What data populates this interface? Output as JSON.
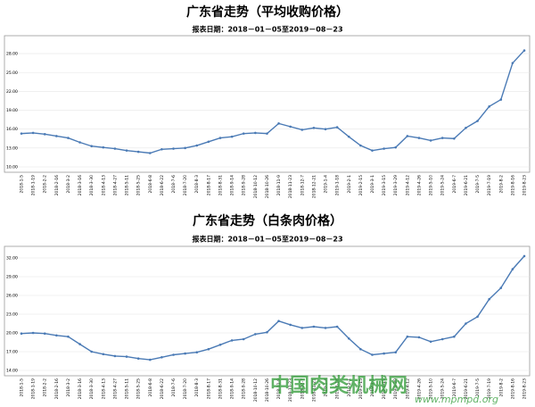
{
  "chart_data": [
    {
      "type": "line",
      "title": "广东省走势（平均收购价格）",
      "subtitle": "报表日期：2018－01－05至2019－08－23",
      "categories": [
        "2018-1-5",
        "2018-1-19",
        "2018-2-2",
        "2018-2-16",
        "2018-3-2",
        "2018-3-16",
        "2018-3-30",
        "2018-4-13",
        "2018-4-27",
        "2018-5-11",
        "2018-5-25",
        "2018-6-8",
        "2018-6-22",
        "2018-7-6",
        "2018-7-20",
        "2018-8-3",
        "2018-8-17",
        "2018-8-31",
        "2018-9-14",
        "2018-9-28",
        "2018-10-12",
        "2018-10-26",
        "2018-11-9",
        "2018-11-23",
        "2018-12-7",
        "2018-12-21",
        "2019-1-4",
        "2019-1-18",
        "2019-2-1",
        "2019-2-15",
        "2019-3-1",
        "2019-3-15",
        "2019-3-29",
        "2019-4-12",
        "2019-4-26",
        "2019-5-10",
        "2019-5-24",
        "2019-6-7",
        "2019-6-21",
        "2019-7-5",
        "2019-7-19",
        "2019-8-2",
        "2019-8-16",
        "2019-8-23"
      ],
      "series": [
        {
          "name": "平均收购价格",
          "color": "#4a7ab5",
          "values": [
            15.3,
            15.4,
            15.2,
            14.9,
            14.6,
            13.9,
            13.3,
            13.1,
            12.9,
            12.6,
            12.4,
            12.2,
            12.8,
            12.9,
            13.0,
            13.4,
            14.0,
            14.6,
            14.8,
            15.3,
            15.4,
            15.3,
            16.9,
            16.4,
            15.9,
            16.2,
            16.0,
            16.3,
            14.8,
            13.4,
            12.6,
            12.9,
            13.1,
            14.9,
            14.6,
            14.2,
            14.6,
            14.5,
            16.2,
            17.3,
            19.6,
            20.7,
            26.5,
            28.5
          ]
        }
      ],
      "ylim": [
        10,
        30
      ],
      "yticks": [
        {
          "value": 10,
          "label": "10.00"
        },
        {
          "value": 13,
          "label": "13.00"
        },
        {
          "value": 16,
          "label": "16.00"
        },
        {
          "value": 19,
          "label": "19.00"
        },
        {
          "value": 22,
          "label": "22.00"
        },
        {
          "value": 25,
          "label": "25.00"
        },
        {
          "value": 28,
          "label": "28.00"
        }
      ],
      "grid": true
    },
    {
      "type": "line",
      "title": "广东省走势（白条肉价格）",
      "subtitle": "报表日期：2018－01－05至2019－08－23",
      "categories": [
        "2018-1-5",
        "2018-1-19",
        "2018-2-2",
        "2018-2-16",
        "2018-3-2",
        "2018-3-16",
        "2018-3-30",
        "2018-4-13",
        "2018-4-27",
        "2018-5-11",
        "2018-5-25",
        "2018-6-8",
        "2018-6-22",
        "2018-7-6",
        "2018-7-20",
        "2018-8-3",
        "2018-8-17",
        "2018-8-31",
        "2018-9-14",
        "2018-9-28",
        "2018-10-12",
        "2018-10-26",
        "2018-11-9",
        "2018-11-23",
        "2018-12-7",
        "2018-12-21",
        "2019-1-4",
        "2019-1-18",
        "2019-2-1",
        "2019-2-15",
        "2019-3-1",
        "2019-3-15",
        "2019-3-29",
        "2019-4-12",
        "2019-4-26",
        "2019-5-10",
        "2019-5-24",
        "2019-6-7",
        "2019-6-21",
        "2019-7-5",
        "2019-7-19",
        "2019-8-2",
        "2019-8-16",
        "2019-8-23"
      ],
      "series": [
        {
          "name": "白条肉价格",
          "color": "#4a7ab5",
          "values": [
            19.9,
            20.0,
            19.9,
            19.6,
            19.4,
            18.2,
            17.0,
            16.6,
            16.3,
            16.2,
            15.9,
            15.7,
            16.1,
            16.5,
            16.7,
            16.9,
            17.4,
            18.1,
            18.8,
            19.0,
            19.8,
            20.1,
            21.9,
            21.3,
            20.8,
            21.0,
            20.8,
            21.0,
            19.1,
            17.4,
            16.5,
            16.7,
            16.9,
            19.4,
            19.3,
            18.6,
            19.0,
            19.4,
            21.5,
            22.6,
            25.4,
            27.2,
            30.2,
            32.3
          ]
        }
      ],
      "ylim": [
        14,
        33
      ],
      "yticks": [
        {
          "value": 14,
          "label": "14.00"
        },
        {
          "value": 17,
          "label": "17.00"
        },
        {
          "value": 20,
          "label": "20.00"
        },
        {
          "value": 23,
          "label": "23.00"
        },
        {
          "value": 26,
          "label": "26.00"
        },
        {
          "value": 29,
          "label": "29.00"
        },
        {
          "value": 32,
          "label": "32.00"
        }
      ],
      "grid": true
    }
  ],
  "watermark": {
    "name": "中国肉类机械网",
    "url": "www.mpmpd.org"
  }
}
